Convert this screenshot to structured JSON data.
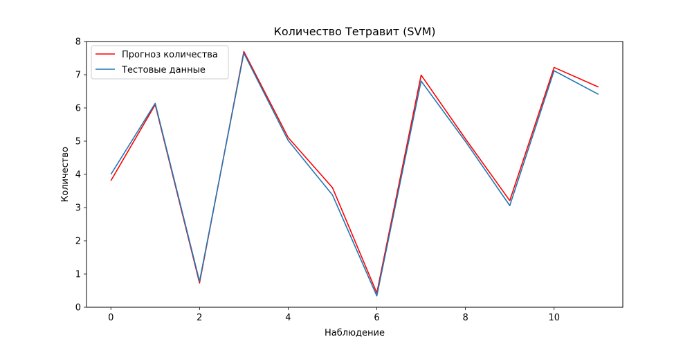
{
  "chart_data": {
    "type": "line",
    "title": "Количество Тетравит (SVM)",
    "xlabel": "Наблюдение",
    "ylabel": "Количество",
    "xlim": [
      -0.55,
      11.55
    ],
    "ylim": [
      0,
      8
    ],
    "x_ticks": [
      0,
      2,
      4,
      6,
      8,
      10
    ],
    "y_ticks": [
      0,
      1,
      2,
      3,
      4,
      5,
      6,
      7,
      8
    ],
    "grid": false,
    "legend_position": "top-left",
    "x": [
      0,
      1,
      2,
      3,
      4,
      5,
      6,
      7,
      8,
      9,
      10,
      11
    ],
    "series": [
      {
        "name": "Прогноз количества",
        "color": "#ff0000",
        "values": [
          3.81,
          6.1,
          0.73,
          7.7,
          5.11,
          3.6,
          0.43,
          6.99,
          5.07,
          3.21,
          7.22,
          6.63
        ]
      },
      {
        "name": "Тестовые данные",
        "color": "#1f77b4",
        "values": [
          4.0,
          6.14,
          0.78,
          7.65,
          5.02,
          3.38,
          0.34,
          6.81,
          4.99,
          3.06,
          7.12,
          6.41
        ]
      }
    ]
  }
}
